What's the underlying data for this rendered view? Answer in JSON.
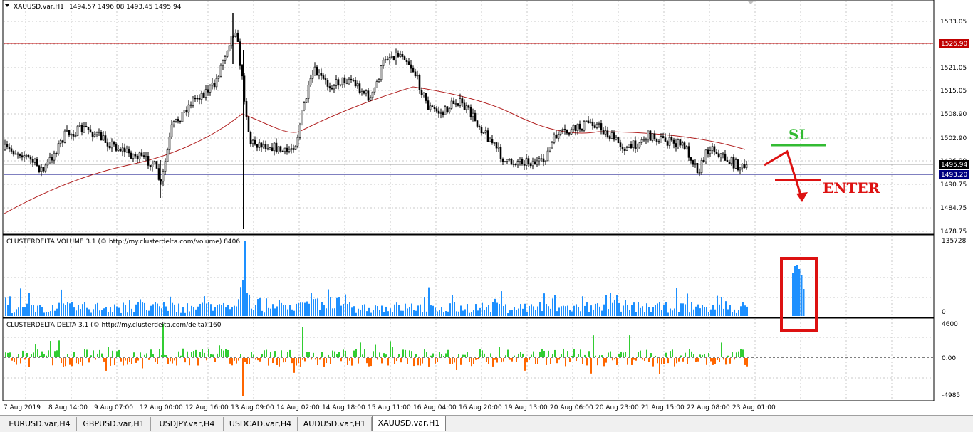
{
  "header": {
    "symbol": "XAUUSD.var,H1",
    "ohlc": "1494.57 1496.08 1493.45 1495.94"
  },
  "price_axis": {
    "ticks": [
      "1533.05",
      "1521.05",
      "1515.05",
      "1508.90",
      "1502.90",
      "1490.75",
      "1484.75",
      "1478.75"
    ],
    "marker_red": "1526.90",
    "marker_current": "1495.94",
    "marker_blue": "1493.20",
    "hidden_tick": "1496.90"
  },
  "volume_panel": {
    "label": "CLUSTERDELTA VOLUME 3.1 (© http://my.clusterdelta.com/volume) 8406",
    "max": "135728",
    "min": "0"
  },
  "delta_panel": {
    "label": "CLUSTERDELTA DELTA 3.1 (© http://my.clusterdelta.com/delta) 160",
    "max": "4600",
    "zero": "0.00",
    "min": "-4985"
  },
  "time_axis": [
    "7 Aug 2019",
    "8 Aug 14:00",
    "9 Aug 07:00",
    "12 Aug 00:00",
    "12 Aug 16:00",
    "13 Aug 09:00",
    "14 Aug 02:00",
    "14 Aug 18:00",
    "15 Aug 11:00",
    "16 Aug 04:00",
    "16 Aug 20:00",
    "19 Aug 13:00",
    "20 Aug 06:00",
    "20 Aug 23:00",
    "21 Aug 15:00",
    "22 Aug 08:00",
    "23 Aug 01:00"
  ],
  "annotations": {
    "sl": "SL",
    "enter": "ENTER"
  },
  "colors": {
    "candle": "#000000",
    "ma": "#b22222",
    "resistance": "#c00000",
    "support": "#000080",
    "volume": "#1e90ff",
    "delta_pos": "#32cd32",
    "delta_neg": "#ff6600",
    "sl": "#33bb33",
    "enter": "#dd1111"
  },
  "tabs": [
    {
      "label": "EURUSD.var,H4",
      "active": false
    },
    {
      "label": "GBPUSD.var,H1",
      "active": false
    },
    {
      "label": "USDJPY.var,H4",
      "active": false
    },
    {
      "label": "USDCAD.var,H4",
      "active": false
    },
    {
      "label": "AUDUSD.var,H1",
      "active": false
    },
    {
      "label": "XAUUSD.var,H1",
      "active": true
    }
  ]
}
